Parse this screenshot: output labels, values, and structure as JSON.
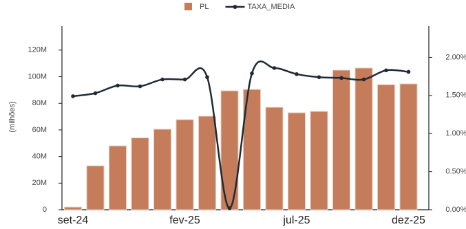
{
  "chart_data": {
    "type": "bar-line",
    "y_axis_label": "(milhões)",
    "categories": [
      "set-24",
      null,
      null,
      null,
      null,
      "fev-25",
      null,
      null,
      null,
      null,
      "jul-25",
      null,
      null,
      null,
      null,
      "dez-25"
    ],
    "series": [
      {
        "name": "PL",
        "type": "bar",
        "color": "#c47c5a",
        "values": [
          2,
          33,
          48,
          54,
          60.5,
          67.7,
          70.3,
          89.4,
          90.4,
          77,
          72.9,
          73.9,
          104.9,
          106.5,
          94,
          94.6
        ]
      },
      {
        "name": "TAXA_MEDIA",
        "type": "line",
        "axis": "y2",
        "color": "#1f2a36",
        "values": [
          1.49,
          1.53,
          1.63,
          1.62,
          1.71,
          1.71,
          1.74,
          0.02,
          1.79,
          1.86,
          1.78,
          1.74,
          1.73,
          1.71,
          1.83,
          1.81
        ]
      }
    ],
    "ylim": [
      0,
      138
    ],
    "yticks": [
      0,
      {
        "value": 20,
        "label": "20M"
      },
      {
        "value": 40,
        "label": "40M"
      },
      {
        "value": 60,
        "label": "60M"
      },
      {
        "value": 80,
        "label": "80M"
      },
      {
        "value": 100,
        "label": "100M"
      },
      {
        "value": 120,
        "label": "120M"
      }
    ],
    "y2lim": [
      0,
      2.41
    ],
    "y2ticks": [
      {
        "value": 0,
        "label": "0.00%"
      },
      {
        "value": 0.5,
        "label": "0.50%"
      },
      {
        "value": 1,
        "label": "1.00%"
      },
      {
        "value": 1.5,
        "label": "1.50%"
      },
      {
        "value": 2,
        "label": "2.00%"
      }
    ],
    "legend": "top"
  }
}
